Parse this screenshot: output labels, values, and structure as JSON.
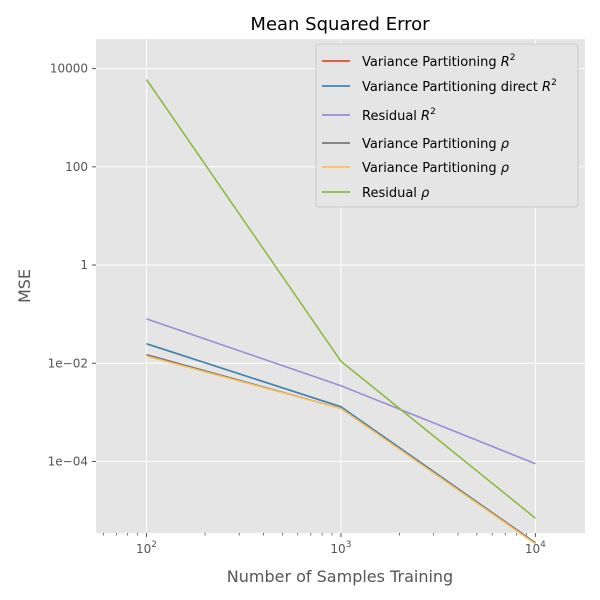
{
  "chart_data": {
    "type": "line",
    "title": "Mean Squared Error",
    "xlabel": "Number of Samples Training",
    "ylabel": "MSE",
    "xscale": "log",
    "yscale": "log",
    "xlim": [
      55,
      18000
    ],
    "ylim": [
      3.5e-06,
      40000
    ],
    "grid": true,
    "legend_position": "top-right",
    "x": [
      100,
      1000,
      10000
    ],
    "x_ticks": [
      {
        "value": 100,
        "base": "10",
        "exp": "2"
      },
      {
        "value": 1000,
        "base": "10",
        "exp": "3"
      },
      {
        "value": 10000,
        "base": "10",
        "exp": "4"
      }
    ],
    "y_ticks": [
      {
        "value": 0.0001,
        "label": "1e−04"
      },
      {
        "value": 0.01,
        "label": "1e−02"
      },
      {
        "value": 1,
        "label": "1"
      },
      {
        "value": 100,
        "label": "100"
      },
      {
        "value": 10000,
        "label": "10000"
      }
    ],
    "series": [
      {
        "name": "Variance Partitioning",
        "symbol": "R",
        "sup": "2",
        "color": "#E24A33",
        "values": [
          0.025,
          0.0013,
          2.2e-06
        ]
      },
      {
        "name": "Variance Partitioning direct",
        "symbol": "R",
        "sup": "2",
        "color": "#348ABD",
        "values": [
          0.025,
          0.0013,
          2.2e-06
        ]
      },
      {
        "name": "Residual",
        "symbol": "R",
        "sup": "2",
        "color": "#988ED5",
        "values": [
          0.08,
          0.0035,
          9e-05
        ]
      },
      {
        "name": "Variance Partitioning",
        "symbol": "ρ",
        "sup": "",
        "color": "#777777",
        "values": [
          0.015,
          0.0012,
          2.2e-06
        ]
      },
      {
        "name": "Variance Partitioning",
        "symbol": "ρ",
        "sup": "",
        "color": "#FBC15E",
        "values": [
          0.014,
          0.0012,
          2.1e-06
        ]
      },
      {
        "name": "Residual",
        "symbol": "ρ",
        "sup": "",
        "color": "#8EBA42",
        "values": [
          6000,
          0.011,
          7e-06
        ]
      }
    ]
  }
}
